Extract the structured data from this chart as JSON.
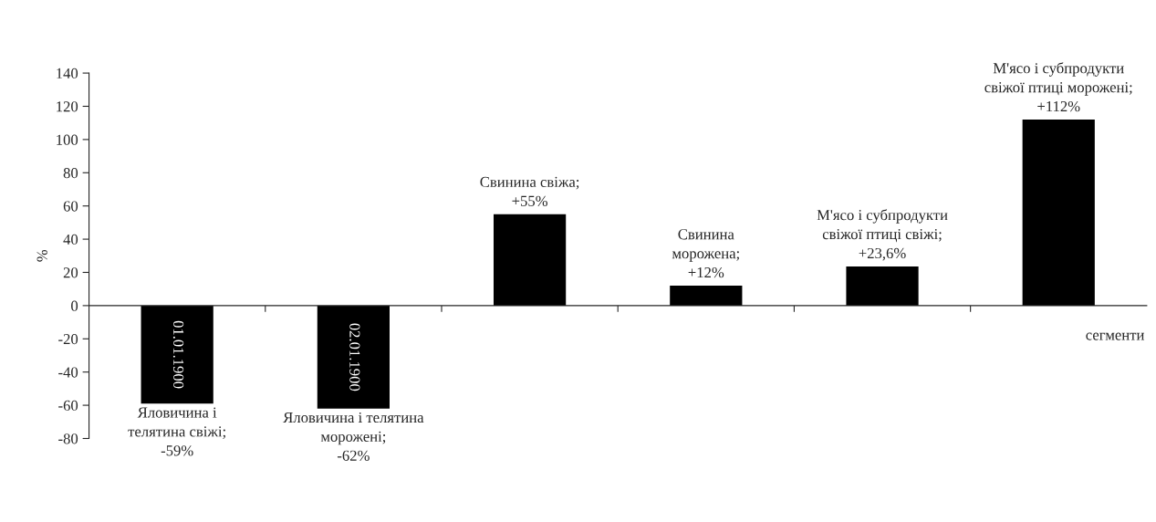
{
  "chart_data": {
    "type": "bar",
    "categories": [
      null,
      null,
      null,
      null,
      null,
      null
    ],
    "values": [
      -59,
      -62,
      55,
      12,
      23.6,
      112
    ],
    "color": "#000000",
    "value_labels": [
      "Яловичина і\nтелятина свіжі;\n-59%",
      "Яловичина і телятина\nморожені;\n-62%",
      "Свинина свіжа;\n+55%",
      "Свинина\nморожена;\n+12%",
      "М'ясо і субпродукти\nсвіжої птиці свіжі;\n+23,6%",
      "М'ясо і субпродукти\nсвіжої птиці морожені;\n+112%"
    ],
    "annotations": [
      "01.01.1900",
      "02.01.1900"
    ],
    "xlabel": "сегменти",
    "ylabel": "%",
    "ylim": [
      -80,
      140
    ],
    "yticks": [
      -80,
      -60,
      -40,
      -20,
      0,
      20,
      40,
      60,
      80,
      100,
      120,
      140
    ],
    "legend": false
  }
}
